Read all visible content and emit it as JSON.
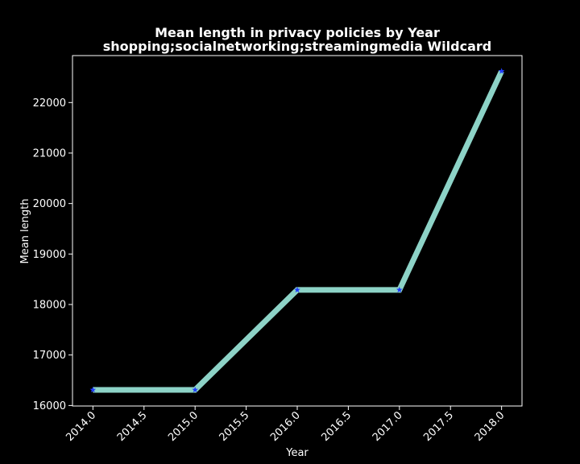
{
  "chart_data": {
    "type": "line",
    "title": "Mean length in privacy policies by Year",
    "subtitle": "shopping;socialnetworking;streamingmedia Wildcard",
    "xlabel": "Year",
    "ylabel": "Mean length",
    "x": [
      2014.0,
      2015.0,
      2016.0,
      2017.0,
      2018.0
    ],
    "series": [
      {
        "name": "Mean length",
        "values": [
          16310,
          16310,
          18290,
          18290,
          22620
        ]
      }
    ],
    "xlim": [
      2013.8,
      2018.2
    ],
    "ylim": [
      15990,
      22930
    ],
    "xticks": [
      2014.0,
      2014.5,
      2015.0,
      2015.5,
      2016.0,
      2016.5,
      2017.0,
      2017.5,
      2018.0
    ],
    "xtick_labels": [
      "2014.0",
      "2014.5",
      "2015.0",
      "2015.5",
      "2016.0",
      "2016.5",
      "2017.0",
      "2017.5",
      "2018.0"
    ],
    "yticks": [
      16000,
      17000,
      18000,
      19000,
      20000,
      21000,
      22000
    ],
    "ytick_labels": [
      "16000",
      "17000",
      "18000",
      "19000",
      "20000",
      "21000",
      "22000"
    ],
    "grid": false,
    "legend": "none",
    "colors": {
      "background": "#000000",
      "line": "#8dd3c7",
      "marker": "#1f3dff",
      "text": "#ffffff",
      "axes": "#ffffff"
    }
  }
}
